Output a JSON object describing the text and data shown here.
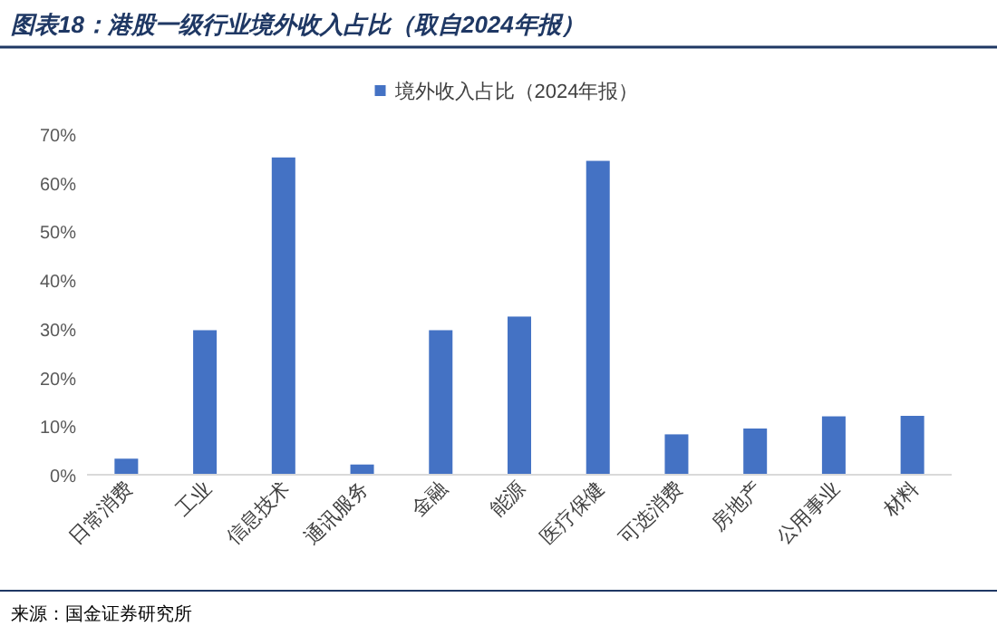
{
  "chart_data": {
    "type": "bar",
    "title": "图表18：港股一级行业境外收入占比（取自2024年报）",
    "categories": [
      "日常消费",
      "工业",
      "信息技术",
      "通讯服务",
      "金融",
      "能源",
      "医疗保健",
      "可选消费",
      "房地产",
      "公用事业",
      "材料"
    ],
    "series": [
      {
        "name": "境外收入占比（2024年报）",
        "color": "#4472c4",
        "values": [
          3.3,
          29.7,
          65.2,
          2.1,
          29.7,
          32.5,
          64.5,
          8.3,
          9.5,
          12.0,
          12.1
        ]
      }
    ],
    "ylim": [
      0,
      70
    ],
    "yticks": [
      {
        "value": 0,
        "label": "0%"
      },
      {
        "value": 10,
        "label": "10%"
      },
      {
        "value": 20,
        "label": "20%"
      },
      {
        "value": 30,
        "label": "30%"
      },
      {
        "value": 40,
        "label": "40%"
      },
      {
        "value": 50,
        "label": "50%"
      },
      {
        "value": 60,
        "label": "60%"
      },
      {
        "value": 70,
        "label": "70%"
      }
    ],
    "legend": "top",
    "annotations": [
      "来源：国金证券研究所"
    ]
  }
}
